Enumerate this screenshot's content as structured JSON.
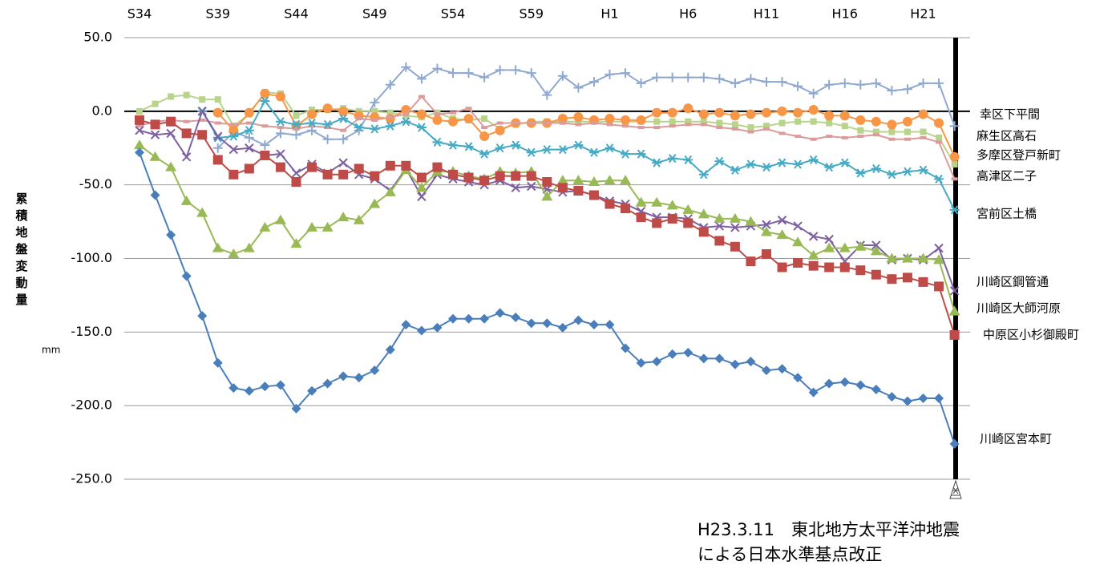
{
  "chart_data": {
    "type": "line",
    "y_label": "累積地盤変動量",
    "y_unit": "mm",
    "annotation": [
      "H23.3.11　東北地方太平洋沖地震",
      "による日本水準基点改正"
    ],
    "categories": [
      "S34",
      null,
      null,
      null,
      null,
      "S39",
      null,
      null,
      null,
      null,
      "S44",
      null,
      null,
      null,
      null,
      "S49",
      null,
      null,
      null,
      null,
      "S54",
      null,
      null,
      null,
      null,
      "S59",
      null,
      null,
      null,
      null,
      "H1",
      null,
      null,
      null,
      null,
      "H6",
      null,
      null,
      null,
      null,
      "H11",
      null,
      null,
      null,
      null,
      "H16",
      null,
      null,
      null,
      null,
      "H21",
      null,
      null
    ],
    "ylim": [
      -250,
      50
    ],
    "yticks": [
      {
        "value": 50,
        "label": "50.0"
      },
      {
        "value": 0,
        "label": "0.0"
      },
      {
        "value": -50,
        "label": "-50.0"
      },
      {
        "value": -100,
        "label": "-100.0"
      },
      {
        "value": -150,
        "label": "-150.0"
      },
      {
        "value": -200,
        "label": "-200.0"
      },
      {
        "value": -250,
        "label": "-250.0"
      }
    ],
    "grid": true,
    "series": [
      {
        "name": "幸区下平間",
        "color": "#8fa8cf",
        "marker": "plus",
        "values": [
          null,
          null,
          null,
          null,
          null,
          -25,
          -14,
          -18,
          -23,
          -15,
          -16,
          -13,
          -19,
          -19,
          -13,
          6,
          18,
          30,
          22,
          29,
          26,
          26,
          23,
          28,
          28,
          26,
          11,
          24,
          16,
          20,
          25,
          26,
          19,
          23,
          23,
          23,
          23,
          22,
          19,
          22,
          20,
          20,
          17,
          12,
          18,
          19,
          18,
          19,
          14,
          15,
          19,
          19,
          -10
        ]
      },
      {
        "name": "麻生区高石",
        "color": "#b7d48a",
        "marker": "smallsquare",
        "values": [
          0,
          5,
          10,
          11,
          8,
          8,
          -10,
          -2,
          13,
          12,
          -3,
          1,
          1,
          2,
          0,
          0,
          -1,
          -3,
          -4,
          -1,
          -5,
          -6,
          -5,
          -12,
          -9,
          -7,
          -7,
          -7,
          -7,
          -7,
          -7,
          -7,
          -7,
          -7,
          -7,
          -7,
          -7,
          -8,
          -9,
          -11,
          -10,
          -8,
          -7,
          -7,
          -8,
          -10,
          -13,
          -14,
          -14,
          -14,
          -14,
          -18,
          -36
        ]
      },
      {
        "name": "多摩区登戸新町",
        "color": "#f79646",
        "marker": "circle",
        "values": [
          null,
          null,
          null,
          null,
          null,
          -1,
          -13,
          -1,
          12,
          10,
          -10,
          -2,
          2,
          0,
          -3,
          -4,
          -5,
          1,
          -2,
          -6,
          -7,
          -5,
          -17,
          -13,
          -8,
          -8,
          -8,
          -5,
          -4,
          -6,
          -5,
          -6,
          -6,
          -1,
          -1,
          2,
          -2,
          -1,
          -3,
          -2,
          -1,
          0,
          -1,
          1,
          -3,
          -3,
          -6,
          -7,
          -9,
          -7,
          -2,
          -8,
          -31
        ]
      },
      {
        "name": "高津区二子",
        "color": "#dc9b9b",
        "marker": "dash",
        "values": [
          -10,
          -7,
          -6,
          -7,
          -6,
          -8,
          -9,
          -8,
          -10,
          -11,
          -12,
          -10,
          -11,
          -13,
          -5,
          -6,
          -4,
          -2,
          10,
          -2,
          -1,
          2,
          -11,
          -8,
          -8,
          -8,
          -8,
          -8,
          -9,
          -8,
          -9,
          -10,
          -11,
          -11,
          -10,
          -9,
          -9,
          -11,
          -12,
          -14,
          -12,
          -15,
          -17,
          -19,
          -17,
          -18,
          -17,
          -16,
          -19,
          -19,
          -18,
          -21,
          -46
        ]
      },
      {
        "name": "宮前区土橋",
        "color": "#46aac5",
        "marker": "asterisk",
        "values": [
          null,
          null,
          null,
          null,
          0,
          -18,
          -17,
          -13,
          7,
          -7,
          -9,
          -8,
          -9,
          -5,
          -11,
          -12,
          -10,
          -7,
          -11,
          -21,
          -23,
          -24,
          -29,
          -25,
          -23,
          -28,
          -26,
          -26,
          -23,
          -28,
          -25,
          -29,
          -29,
          -35,
          -32,
          -33,
          -43,
          -34,
          -40,
          -36,
          -38,
          -35,
          -36,
          -33,
          -38,
          -35,
          -42,
          -39,
          -43,
          -41,
          -40,
          -46,
          -67
        ]
      },
      {
        "name": "川崎区鋼管通",
        "color": "#7d60a0",
        "marker": "x",
        "values": [
          -13,
          -16,
          -15,
          -31,
          0,
          -17,
          -26,
          -25,
          -30,
          -29,
          -42,
          -36,
          -42,
          -35,
          -43,
          -46,
          -54,
          -39,
          -58,
          -43,
          -46,
          -48,
          -50,
          -47,
          -52,
          -51,
          -53,
          -55,
          -54,
          -57,
          -61,
          -63,
          -68,
          -72,
          -72,
          -73,
          -79,
          -78,
          -79,
          -78,
          -77,
          -74,
          -78,
          -85,
          -87,
          -102,
          -91,
          -91,
          -101,
          -100,
          -101,
          -93,
          -122
        ]
      },
      {
        "name": "川崎区大師河原",
        "color": "#98b954",
        "marker": "triangle",
        "values": [
          -23,
          -31,
          -38,
          -61,
          -69,
          -93,
          -97,
          -93,
          -79,
          -74,
          -90,
          -79,
          -79,
          -72,
          -74,
          -63,
          -55,
          -40,
          -52,
          -41,
          -41,
          -44,
          -46,
          -41,
          -42,
          -41,
          -58,
          -47,
          -47,
          -48,
          -47,
          -47,
          -62,
          -62,
          -64,
          -67,
          -70,
          -73,
          -73,
          -75,
          -82,
          -84,
          -89,
          -98,
          -93,
          -93,
          -92,
          -95,
          -100,
          -100,
          -100,
          -101,
          -136
        ]
      },
      {
        "name": "中原区小杉御殿町",
        "color": "#be4b48",
        "marker": "square",
        "values": [
          -6,
          -9,
          -7,
          -15,
          -16,
          -33,
          -43,
          -39,
          -30,
          -38,
          -48,
          -38,
          -43,
          -43,
          -39,
          -44,
          -37,
          -37,
          -45,
          -38,
          -43,
          -45,
          -47,
          -44,
          -44,
          -44,
          -48,
          -52,
          -54,
          -57,
          -63,
          -66,
          -72,
          -76,
          -73,
          -76,
          -82,
          -88,
          -92,
          -102,
          -97,
          -106,
          -103,
          -105,
          -106,
          -106,
          -108,
          -111,
          -114,
          -113,
          -116,
          -119,
          -152
        ]
      },
      {
        "name": "川崎区宮本町",
        "color": "#4a7ebb",
        "marker": "diamond",
        "values": [
          -28,
          -57,
          -84,
          -112,
          -139,
          -171,
          -188,
          -190,
          -187,
          -186,
          -202,
          -190,
          -185,
          -180,
          -181,
          -176,
          -162,
          -145,
          -149,
          -147,
          -141,
          -141,
          -141,
          -137,
          -140,
          -144,
          -144,
          -147,
          -142,
          -145,
          -145,
          -161,
          -171,
          -170,
          -165,
          -164,
          -168,
          -168,
          -172,
          -170,
          -176,
          -175,
          -181,
          -191,
          -185,
          -184,
          -186,
          -189,
          -194,
          -197,
          -195,
          -195,
          -226
        ]
      }
    ]
  }
}
